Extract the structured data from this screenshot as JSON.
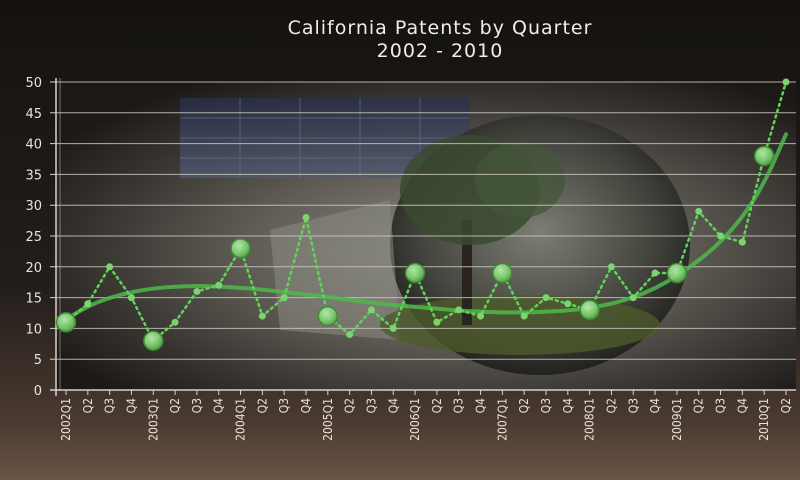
{
  "chart_data": {
    "type": "line",
    "title": "California Patents by Quarter",
    "subtitle": "2002 - 2010",
    "xlabel": "",
    "ylabel": "",
    "ylim": [
      0,
      50
    ],
    "y_ticks": [
      0,
      5,
      10,
      15,
      20,
      25,
      30,
      35,
      40,
      45,
      50
    ],
    "grid": true,
    "categories": [
      "2002Q1",
      "Q2",
      "Q3",
      "Q4",
      "2003Q1",
      "Q2",
      "Q3",
      "Q4",
      "2004Q1",
      "Q2",
      "Q3",
      "Q4",
      "2005Q1",
      "Q2",
      "Q3",
      "Q4",
      "2006Q1",
      "Q2",
      "Q3",
      "Q4",
      "2007Q1",
      "Q2",
      "Q3",
      "Q4",
      "2008Q1",
      "Q2",
      "Q3",
      "Q4",
      "2009Q1",
      "Q2",
      "Q3",
      "Q4",
      "2010Q1",
      "Q2"
    ],
    "tick_labels": [
      "2002Q1",
      "Q2",
      "Q3",
      "Q4",
      "2003Q1",
      "Q2",
      "Q3",
      "Q4",
      "2004Q1",
      "Q2",
      "Q3",
      "Q4",
      "2005Q1",
      "Q2",
      "Q3",
      "Q4",
      "2006Q1",
      "Q2",
      "Q3",
      "Q4",
      "2007Q1",
      "Q2",
      "Q3",
      "Q4",
      "2008Q1",
      "Q2",
      "Q3",
      "Q4",
      "2009Q1",
      "Q2",
      "Q3",
      "Q4",
      "2010Q1",
      "Q2"
    ],
    "series": [
      {
        "values": [
          11,
          14,
          20,
          15,
          8,
          11,
          16,
          17,
          23,
          12,
          15,
          28,
          12,
          9,
          13,
          10,
          19,
          11,
          13,
          12,
          19,
          12,
          15,
          14,
          13,
          20,
          15,
          19,
          19,
          29,
          25,
          24,
          38,
          50
        ],
        "color": "#5fd35a",
        "style": "dotted",
        "highlighted_points": [
          0,
          4,
          8,
          12,
          16,
          20,
          24,
          28,
          32
        ]
      },
      {
        "values": [
          11.5,
          13.6,
          15.0,
          15.9,
          16.5,
          16.8,
          16.9,
          16.8,
          16.6,
          16.3,
          15.9,
          15.5,
          15.1,
          14.6,
          14.2,
          13.8,
          13.5,
          13.2,
          12.9,
          12.7,
          12.6,
          12.6,
          12.7,
          12.9,
          13.3,
          14.0,
          15.0,
          16.5,
          18.5,
          21.0,
          24.0,
          28.0,
          33.5,
          41.5
        ],
        "color": "#4fb84b",
        "style": "trend"
      }
    ]
  },
  "colors": {
    "grid": "#cfc9c2",
    "axis": "#d8d2ca",
    "text": "#ede8e1",
    "point_fill": "#7bd56f",
    "marker_fill": "#8ad97e"
  }
}
